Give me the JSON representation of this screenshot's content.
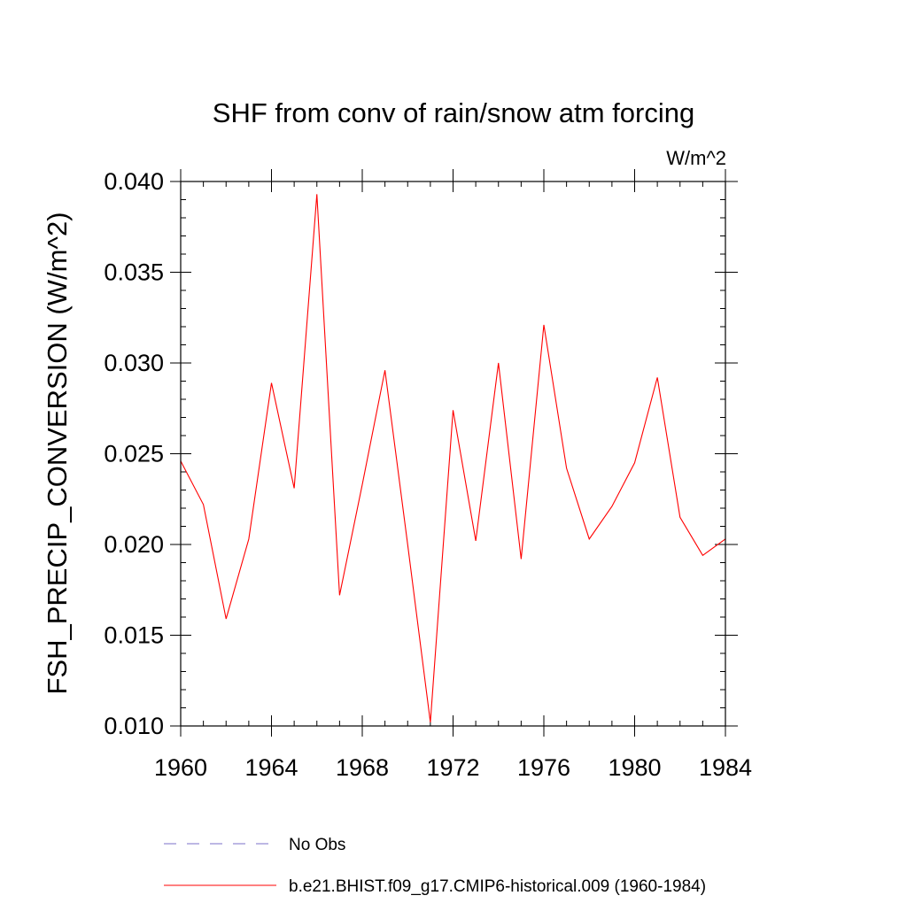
{
  "chart_data": {
    "type": "line",
    "title": "SHF from conv of rain/snow atm forcing",
    "units_label": "W/m^2",
    "ylabel": "FSH_PRECIP_CONVERSION  (W/m^2)",
    "xlabel": "",
    "xlim": [
      1960,
      1984
    ],
    "ylim": [
      0.01,
      0.04
    ],
    "x_ticks": [
      1960,
      1964,
      1968,
      1972,
      1976,
      1980,
      1984
    ],
    "x_tick_labels": [
      "1960",
      "1964",
      "1968",
      "1972",
      "1976",
      "1980",
      "1984"
    ],
    "y_ticks": [
      0.01,
      0.015,
      0.02,
      0.025,
      0.03,
      0.035,
      0.04
    ],
    "y_tick_labels": [
      "0.010",
      "0.015",
      "0.020",
      "0.025",
      "0.030",
      "0.035",
      "0.040"
    ],
    "grid": false,
    "legend_position": "bottom",
    "series": [
      {
        "name": "b.e21.BHIST.f09_g17.CMIP6-historical.009 (1960-1984)",
        "color": "#ff0000",
        "style": "solid",
        "x": [
          1960,
          1961,
          1962,
          1963,
          1964,
          1965,
          1966,
          1967,
          1968,
          1969,
          1970,
          1971,
          1972,
          1973,
          1974,
          1975,
          1976,
          1977,
          1978,
          1979,
          1980,
          1981,
          1982,
          1983,
          1984
        ],
        "values": [
          0.0246,
          0.0222,
          0.0159,
          0.0203,
          0.0289,
          0.0231,
          0.0393,
          0.0172,
          0.0233,
          0.0296,
          0.02,
          0.0102,
          0.0274,
          0.0202,
          0.03,
          0.0192,
          0.0321,
          0.0242,
          0.0203,
          0.0221,
          0.0245,
          0.0292,
          0.0215,
          0.0194,
          0.0203
        ]
      }
    ],
    "legend": [
      {
        "label": "No Obs",
        "color": "#7b6fc9",
        "style": "dashed"
      },
      {
        "label": "b.e21.BHIST.f09_g17.CMIP6-historical.009 (1960-1984)",
        "color": "#ff0000",
        "style": "solid"
      }
    ]
  }
}
